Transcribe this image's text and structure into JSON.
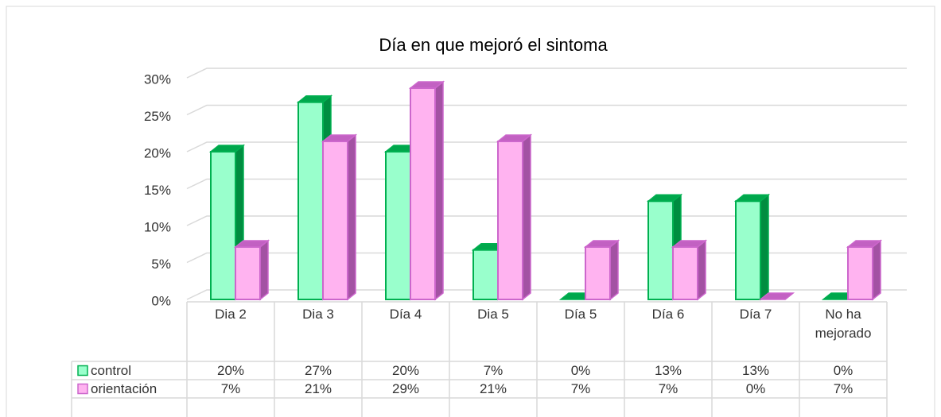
{
  "chart_data": {
    "type": "bar3d",
    "title": "Día en que mejoró el sintoma",
    "categories": [
      "Dia 2",
      "Dia 3",
      "Día 4",
      "Dia 5",
      "Día 5",
      "Día 6",
      "Día 7",
      "No ha mejorado"
    ],
    "series": [
      {
        "name": "control",
        "color": "#99ffcc",
        "edge": "#00b050",
        "values": [
          20,
          26.7,
          20,
          6.7,
          0,
          13.3,
          13.3,
          0
        ],
        "value_labels": [
          "20%",
          "27%",
          "20%",
          "7%",
          "0%",
          "13%",
          "13%",
          "0%"
        ]
      },
      {
        "name": "orientación",
        "color": "#ffb3f0",
        "edge": "#cc66cc",
        "values": [
          7.1,
          21.4,
          28.6,
          21.4,
          7.1,
          7.1,
          0,
          7.1
        ],
        "value_labels": [
          "7%",
          "21%",
          "29%",
          "21%",
          "7%",
          "7%",
          "0%",
          "7%"
        ]
      }
    ],
    "ylim": [
      0,
      30
    ],
    "yticks": [
      {
        "value": 0,
        "label": "0%"
      },
      {
        "value": 5,
        "label": "5%"
      },
      {
        "value": 10,
        "label": "10%"
      },
      {
        "value": 15,
        "label": "15%"
      },
      {
        "value": 20,
        "label": "20%"
      },
      {
        "value": 25,
        "label": "25%"
      },
      {
        "value": 30,
        "label": "30%"
      }
    ],
    "grid": true
  }
}
